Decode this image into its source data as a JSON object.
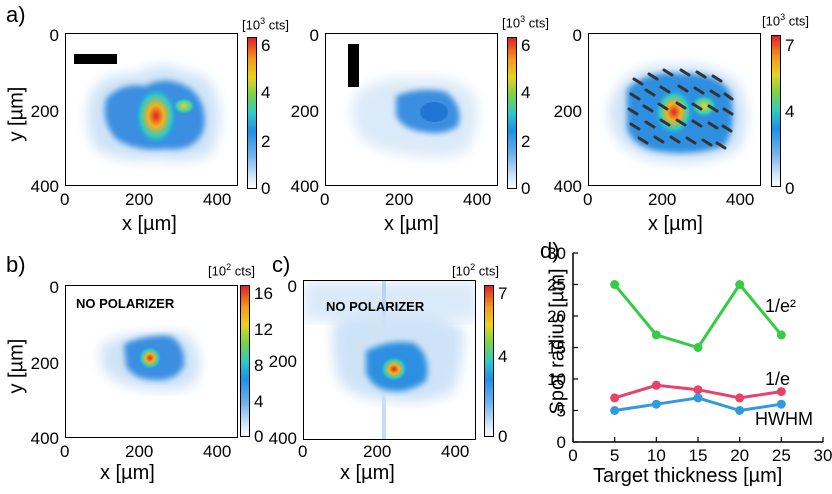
{
  "panels": {
    "a": {
      "letter": "a)",
      "cbar_unit_pre": "[10",
      "cbar_unit_exp": "3",
      "cbar_unit_post": " cts]"
    },
    "b": {
      "letter": "b)",
      "cbar_unit_pre": "[10",
      "cbar_unit_exp": "2",
      "cbar_unit_post": " cts]",
      "label": "NO POLARIZER"
    },
    "c": {
      "letter": "c)",
      "cbar_unit_pre": "[10",
      "cbar_unit_exp": "2",
      "cbar_unit_post": " cts]",
      "label": "NO POLARIZER"
    },
    "d": {
      "letter": "d)"
    }
  },
  "axes": {
    "x_label": "x [µm]",
    "y_label": "y [µm]",
    "x_ticks": [
      "0",
      "200",
      "400"
    ],
    "y_ticks": [
      "0",
      "200",
      "400"
    ]
  },
  "colorbars": {
    "a1": [
      "0",
      "2",
      "4",
      "6"
    ],
    "a2": [
      "0",
      "2",
      "4",
      "6"
    ],
    "a3": [
      "0",
      "4",
      "7"
    ],
    "b": [
      "0",
      "4",
      "8",
      "12",
      "16"
    ],
    "c": [
      "0",
      "4",
      "7"
    ]
  },
  "colors": {
    "hot": "#e2202a",
    "mid": "#1e90e6",
    "series_green": "#33cc44",
    "series_pink": "#e8416a",
    "series_blue": "#3399dd"
  },
  "chart_data": {
    "type": "line",
    "xlabel": "Target thickness [µm]",
    "ylabel": "Spot radius [µm]",
    "xlim": [
      0,
      30
    ],
    "ylim": [
      0,
      30
    ],
    "x_ticks": [
      "0",
      "5",
      "10",
      "15",
      "20",
      "25",
      "30"
    ],
    "y_ticks": [
      "0",
      "5",
      "10",
      "15",
      "20",
      "25",
      "30"
    ],
    "x": [
      5,
      10,
      15,
      20,
      25
    ],
    "series": [
      {
        "name": "1/e²",
        "values": [
          25,
          17,
          15,
          25,
          17
        ],
        "color": "#33cc44"
      },
      {
        "name": "1/e",
        "values": [
          7,
          9,
          8.3,
          7,
          8
        ],
        "color": "#e8416a"
      },
      {
        "name": "HWHM",
        "values": [
          5,
          6,
          7,
          5,
          6
        ],
        "color": "#3399dd"
      }
    ],
    "grid": false
  }
}
